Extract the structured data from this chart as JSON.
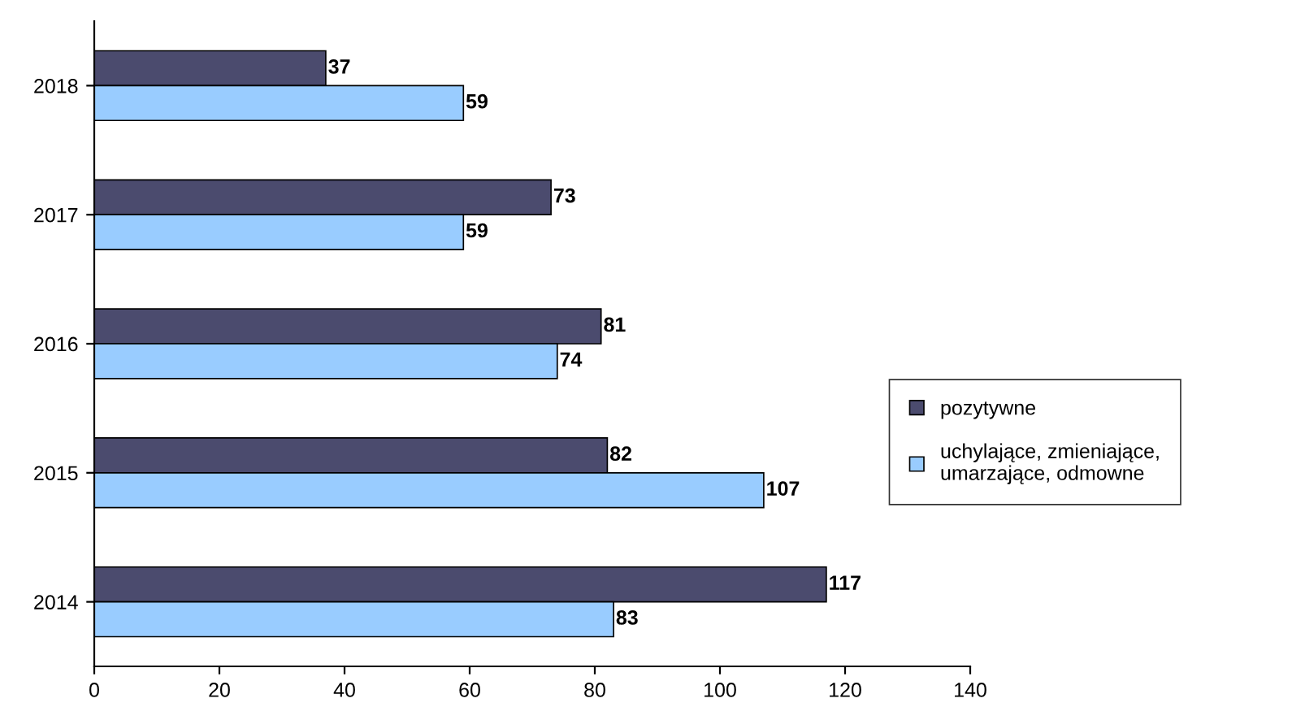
{
  "chart_data": {
    "type": "bar",
    "orientation": "horizontal",
    "categories": [
      "2018",
      "2017",
      "2016",
      "2015",
      "2014"
    ],
    "series": [
      {
        "name": "pozytywne",
        "color": "#4b4b6e",
        "values": [
          37,
          73,
          81,
          82,
          117
        ]
      },
      {
        "name": "uchylające, zmieniające,\numarzające, odmowne",
        "color": "#99ccff",
        "values": [
          59,
          59,
          74,
          107,
          83
        ]
      }
    ],
    "xlim": [
      0,
      140
    ],
    "xticks": [
      0,
      20,
      40,
      60,
      80,
      100,
      120,
      140
    ],
    "data_labels": true,
    "grid": false,
    "legend": "right"
  }
}
